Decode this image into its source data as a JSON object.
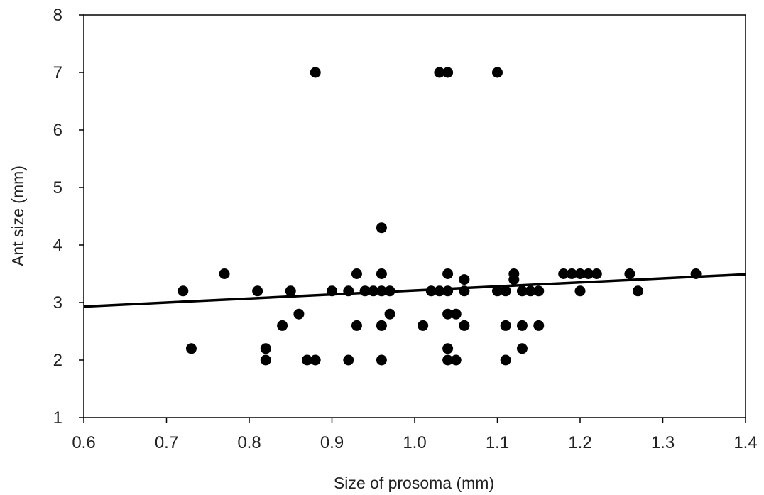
{
  "chart_data": {
    "type": "scatter",
    "title": "",
    "xlabel": "Size of prosoma (mm)",
    "ylabel": "Ant size (mm)",
    "xlim": [
      0.6,
      1.4
    ],
    "ylim": [
      1,
      8
    ],
    "xticks": [
      0.6,
      0.7,
      0.8,
      0.9,
      1.0,
      1.1,
      1.2,
      1.3,
      1.4
    ],
    "xtick_labels": [
      "0.6",
      "0.7",
      "0.8",
      "0.9",
      "1.0",
      "1.1",
      "1.2",
      "1.3",
      "1.4"
    ],
    "yticks": [
      1,
      2,
      3,
      4,
      5,
      6,
      7,
      8
    ],
    "ytick_labels": [
      "1",
      "2",
      "3",
      "4",
      "5",
      "6",
      "7",
      "8"
    ],
    "grid": false,
    "legend": "none",
    "marker_color": "#000000",
    "line_color": "#000000",
    "points": [
      [
        0.72,
        3.2
      ],
      [
        0.73,
        2.2
      ],
      [
        0.77,
        3.5
      ],
      [
        0.81,
        3.2
      ],
      [
        0.82,
        2.2
      ],
      [
        0.82,
        2.0
      ],
      [
        0.84,
        2.6
      ],
      [
        0.85,
        3.2
      ],
      [
        0.86,
        2.8
      ],
      [
        0.87,
        2.0
      ],
      [
        0.88,
        2.0
      ],
      [
        0.88,
        7.0
      ],
      [
        0.9,
        3.2
      ],
      [
        0.92,
        3.2
      ],
      [
        0.92,
        2.0
      ],
      [
        0.93,
        3.5
      ],
      [
        0.93,
        2.6
      ],
      [
        0.94,
        3.2
      ],
      [
        0.95,
        3.2
      ],
      [
        0.96,
        3.5
      ],
      [
        0.96,
        3.2
      ],
      [
        0.96,
        2.6
      ],
      [
        0.96,
        2.0
      ],
      [
        0.96,
        4.3
      ],
      [
        0.97,
        3.2
      ],
      [
        0.97,
        2.8
      ],
      [
        1.01,
        2.6
      ],
      [
        1.02,
        3.2
      ],
      [
        1.03,
        3.2
      ],
      [
        1.03,
        7.0
      ],
      [
        1.04,
        7.0
      ],
      [
        1.04,
        3.5
      ],
      [
        1.04,
        3.2
      ],
      [
        1.04,
        2.8
      ],
      [
        1.04,
        2.2
      ],
      [
        1.04,
        2.0
      ],
      [
        1.05,
        2.8
      ],
      [
        1.05,
        2.0
      ],
      [
        1.06,
        3.4
      ],
      [
        1.06,
        3.2
      ],
      [
        1.06,
        2.6
      ],
      [
        1.1,
        7.0
      ],
      [
        1.1,
        3.2
      ],
      [
        1.11,
        3.2
      ],
      [
        1.11,
        2.6
      ],
      [
        1.11,
        2.0
      ],
      [
        1.12,
        3.5
      ],
      [
        1.12,
        3.4
      ],
      [
        1.13,
        3.2
      ],
      [
        1.13,
        2.6
      ],
      [
        1.13,
        2.2
      ],
      [
        1.14,
        3.2
      ],
      [
        1.15,
        3.2
      ],
      [
        1.15,
        2.6
      ],
      [
        1.18,
        3.5
      ],
      [
        1.19,
        3.5
      ],
      [
        1.2,
        3.5
      ],
      [
        1.2,
        3.2
      ],
      [
        1.21,
        3.5
      ],
      [
        1.22,
        3.5
      ],
      [
        1.26,
        3.5
      ],
      [
        1.27,
        3.2
      ],
      [
        1.34,
        3.5
      ]
    ],
    "trend_line": {
      "x": [
        0.6,
        1.4
      ],
      "y": [
        2.93,
        3.49
      ]
    }
  }
}
